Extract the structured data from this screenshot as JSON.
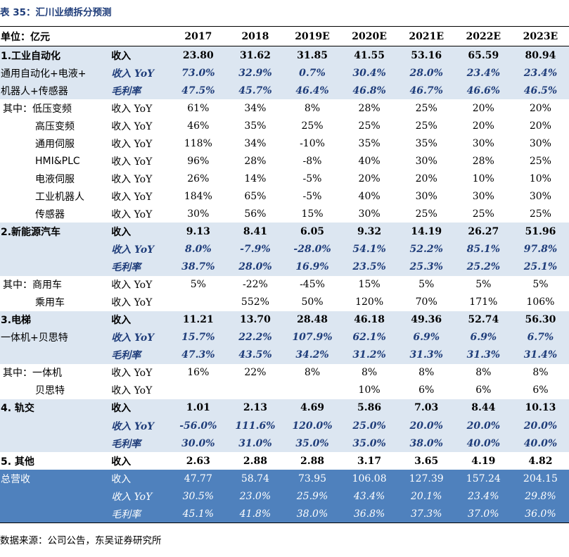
{
  "caption": "表 35：汇川业绩拆分预测",
  "header": {
    "unit": "单位：亿元",
    "years": [
      "2017",
      "2018",
      "2019E",
      "2020E",
      "2021E",
      "2022E",
      "2023E"
    ]
  },
  "rows": [
    {
      "label": "1.工业自动化",
      "metric": "收入",
      "values": [
        "23.80",
        "31.62",
        "31.85",
        "41.55",
        "53.16",
        "65.59",
        "80.94"
      ],
      "style": "shade bold"
    },
    {
      "label": "通用自动化+电液+",
      "metric": "收入 YoY",
      "values": [
        "73.0%",
        "32.9%",
        "0.7%",
        "30.4%",
        "28.0%",
        "23.4%",
        "23.4%"
      ],
      "style": "shade ital"
    },
    {
      "label": "机器人+传感器",
      "metric": "毛利率",
      "values": [
        "47.5%",
        "45.7%",
        "46.4%",
        "46.8%",
        "46.7%",
        "46.6%",
        "46.5%"
      ],
      "style": "shade ital"
    },
    {
      "label": "其中：低压变频",
      "metric": "收入 YoY",
      "values": [
        "61%",
        "34%",
        "8%",
        "28%",
        "25%",
        "20%",
        "20%"
      ],
      "style": "ind1"
    },
    {
      "label": "高压变频",
      "metric": "收入 YoY",
      "values": [
        "46%",
        "35%",
        "25%",
        "25%",
        "25%",
        "20%",
        "20%"
      ],
      "style": "ind2"
    },
    {
      "label": "通用伺服",
      "metric": "收入 YoY",
      "values": [
        "118%",
        "34%",
        "-10%",
        "35%",
        "35%",
        "30%",
        "30%"
      ],
      "style": "ind2"
    },
    {
      "label": "HMI&PLC",
      "metric": "收入 YoY",
      "values": [
        "96%",
        "28%",
        "-8%",
        "40%",
        "30%",
        "28%",
        "25%"
      ],
      "style": "ind2"
    },
    {
      "label": "电液伺服",
      "metric": "收入 YoY",
      "values": [
        "26%",
        "14%",
        "-5%",
        "20%",
        "20%",
        "10%",
        "10%"
      ],
      "style": "ind2"
    },
    {
      "label": "工业机器人",
      "metric": "收入 YoY",
      "values": [
        "184%",
        "65%",
        "-5%",
        "40%",
        "30%",
        "30%",
        "30%"
      ],
      "style": "ind2"
    },
    {
      "label": "传感器",
      "metric": "收入 YoY",
      "values": [
        "30%",
        "56%",
        "15%",
        "30%",
        "25%",
        "25%",
        "25%"
      ],
      "style": "ind2"
    },
    {
      "label": "2.新能源汽车",
      "metric": "收入",
      "values": [
        "9.13",
        "8.41",
        "6.05",
        "9.32",
        "14.19",
        "26.27",
        "51.96"
      ],
      "style": "shade bold"
    },
    {
      "label": "",
      "metric": "收入 YoY",
      "values": [
        "8.0%",
        "-7.9%",
        "-28.0%",
        "54.1%",
        "52.2%",
        "85.1%",
        "97.8%"
      ],
      "style": "shade ital"
    },
    {
      "label": "",
      "metric": "毛利率",
      "values": [
        "38.7%",
        "28.0%",
        "16.9%",
        "23.5%",
        "25.3%",
        "25.2%",
        "25.1%"
      ],
      "style": "shade ital"
    },
    {
      "label": "其中：商用车",
      "metric": "收入 YoY",
      "values": [
        "5%",
        "-22%",
        "-45%",
        "15%",
        "5%",
        "5%",
        "5%"
      ],
      "style": "ind1"
    },
    {
      "label": "乘用车",
      "metric": "收入 YoY",
      "values": [
        "",
        "552%",
        "50%",
        "120%",
        "70%",
        "171%",
        "106%"
      ],
      "style": "ind2"
    },
    {
      "label": "3.电梯",
      "metric": "收入",
      "values": [
        "11.21",
        "13.70",
        "28.48",
        "46.18",
        "49.36",
        "52.74",
        "56.30"
      ],
      "style": "shade bold"
    },
    {
      "label": "一体机+贝思特",
      "metric": "收入 YoY",
      "values": [
        "15.7%",
        "22.2%",
        "107.9%",
        "62.1%",
        "6.9%",
        "6.9%",
        "6.7%"
      ],
      "style": "shade ital"
    },
    {
      "label": "",
      "metric": "毛利率",
      "values": [
        "47.3%",
        "43.5%",
        "34.2%",
        "31.2%",
        "31.3%",
        "31.3%",
        "31.4%"
      ],
      "style": "shade ital"
    },
    {
      "label": "其中：一体机",
      "metric": "收入 YoY",
      "values": [
        "16%",
        "22%",
        "8%",
        "8%",
        "8%",
        "8%",
        "8%"
      ],
      "style": "ind1"
    },
    {
      "label": "贝思特",
      "metric": "收入 YoY",
      "values": [
        "",
        "",
        "",
        "10%",
        "6%",
        "6%",
        "6%"
      ],
      "style": "ind2"
    },
    {
      "label": "4. 轨交",
      "metric": "收入",
      "values": [
        "1.01",
        "2.13",
        "4.69",
        "5.86",
        "7.03",
        "8.44",
        "10.13"
      ],
      "style": "shade bold"
    },
    {
      "label": "",
      "metric": "收入 YoY",
      "values": [
        "-56.0%",
        "111.6%",
        "120.0%",
        "25.0%",
        "20.0%",
        "20.0%",
        "20.0%"
      ],
      "style": "shade ital"
    },
    {
      "label": "",
      "metric": "毛利率",
      "values": [
        "30.0%",
        "31.0%",
        "35.0%",
        "35.0%",
        "38.0%",
        "40.0%",
        "40.0%"
      ],
      "style": "shade ital"
    },
    {
      "label": "5. 其他",
      "metric": "收入",
      "values": [
        "2.63",
        "2.88",
        "2.88",
        "3.17",
        "3.65",
        "4.19",
        "4.82"
      ],
      "style": "bold"
    },
    {
      "label": "总营收",
      "metric": "收入",
      "values": [
        "47.77",
        "58.74",
        "73.95",
        "106.08",
        "127.39",
        "157.24",
        "204.15"
      ],
      "style": "total"
    },
    {
      "label": "",
      "metric": "收入 YoY",
      "values": [
        "30.5%",
        "23.0%",
        "25.9%",
        "43.4%",
        "20.1%",
        "23.4%",
        "29.8%"
      ],
      "style": "total ital"
    },
    {
      "label": "",
      "metric": "毛利率",
      "values": [
        "45.1%",
        "41.8%",
        "38.0%",
        "36.8%",
        "37.3%",
        "37.0%",
        "36.0%"
      ],
      "style": "total ital bottomline"
    }
  ],
  "source": "数据来源：公司公告，东吴证券研究所"
}
